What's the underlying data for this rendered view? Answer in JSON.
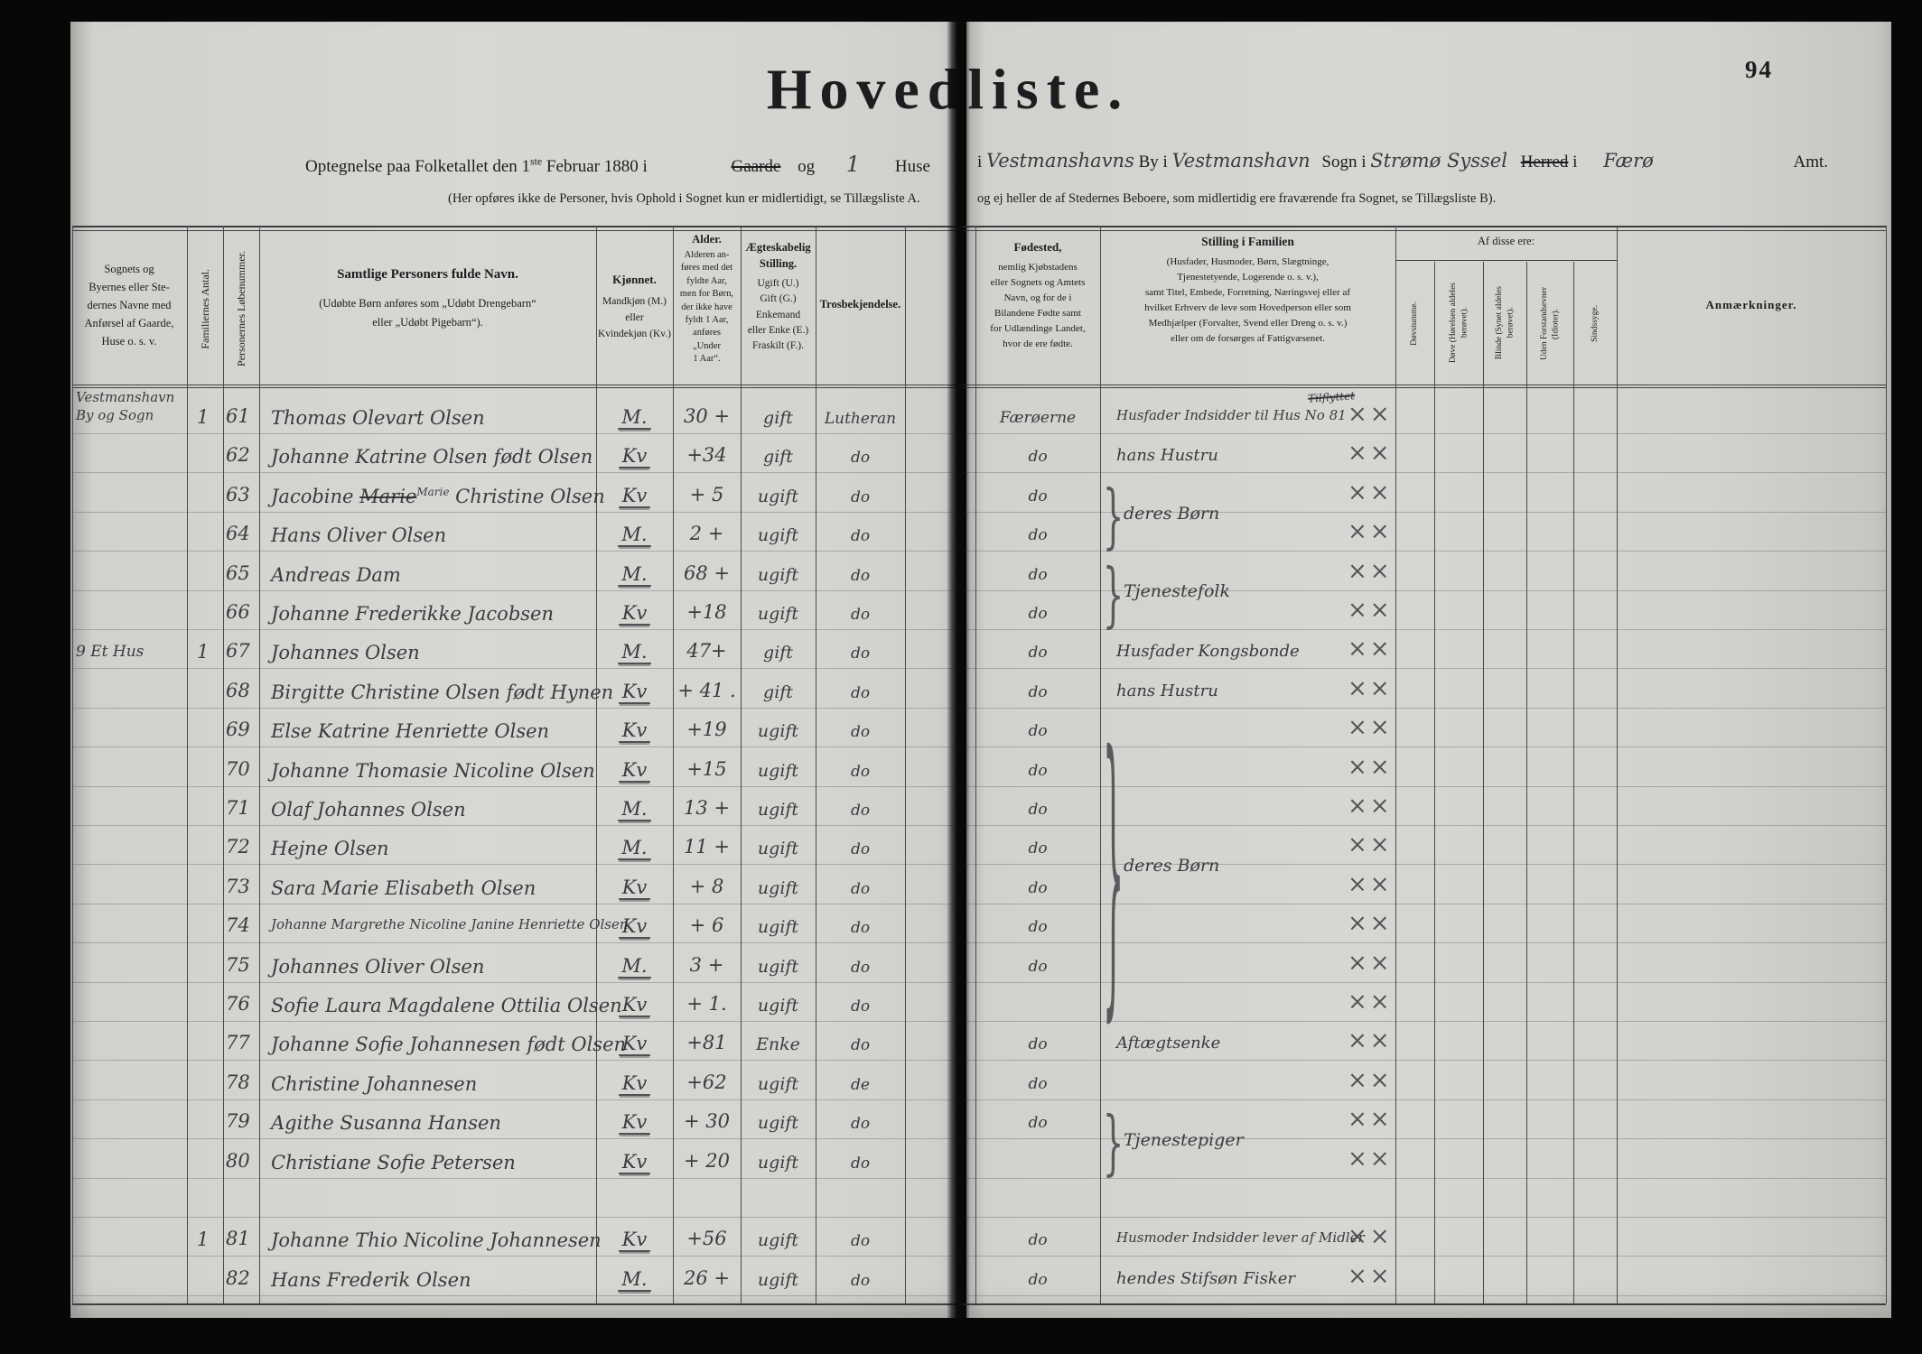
{
  "page_number": "94",
  "title": "Hovedliste.",
  "header": {
    "left_line1": {
      "pre": "Optegnelse paa Folketallet den 1",
      "sup": "ste",
      "post": " Februar 1880 i",
      "struck_gaarde": "Gaarde",
      "og": "og",
      "hw_count": "1",
      "huse": "Huse"
    },
    "right_line1": {
      "i1": "i",
      "hw_by": "Vestmanshavns",
      "by": "By i",
      "hw_sogn": "Vestmanshavn",
      "sogn": "Sogn i",
      "hw_herred": "Strømø Syssel",
      "herred": "Herred",
      "i2": "i",
      "hw_amt": "Færø",
      "amt": "Amt."
    },
    "left_line2": "(Her opføres ikke de Personer, hvis Ophold i Sognet kun er midlertidigt, se Tillægsliste A.",
    "right_line2": "og ej heller de af Stedernes Beboere, som midlertidig ere fraværende fra Sognet, se Tillægsliste B)."
  },
  "columns": {
    "place": "Sognets og\nByernes eller Ste-\ndernes Navne med\nAnførsel af Gaarde,\nHuse o. s. v.",
    "fam_antal": "Familiernes Antal.",
    "pers_nr": "Personernes Løbenummer.",
    "name_main": "Samtlige Personers fulde Navn.",
    "name_sub": "(Udøbte Børn anføres som „Udøbt Drengebarn“\neller „Udøbt Pigebarn“).",
    "sex_main": "Kjønnet.",
    "sex_sub": "Mandkjøn (M.)\neller\nKvindekjøn (Kv.)",
    "age_main": "Alder.",
    "age_sub": "Alderen an-\nføres med det\nfyldte Aar,\nmen for Børn,\nder ikke have\nfyldt 1 Aar,\nanføres\n„Under\n1 Aar“.",
    "marital_main": "Ægteskabelig\nStilling.",
    "marital_sub": "Ugift (U.)\nGift (G.)\nEnkemand\neller Enke (E.)\nFraskilt (F.).",
    "religion": "Trosbekjendelse.",
    "birth_main": "Fødested,",
    "birth_sub": "nemlig Kjøbstadens\neller Sognets og Amtets\nNavn, og for de i\nBilandene Fødte samt\nfor Udlændinge Landet,\nhvor de ere fødte.",
    "position_main": "Stilling i Familien",
    "position_sub": "(Husfader, Husmoder, Børn, Slægtninge,\nTjenestetyende, Logerende o. s. v.),\nsamt Titel, Embede, Forretning, Næringsvej eller af\nhvilket Erhverv de leve som Hovedperson eller som\nMedhjælper (Forvalter, Svend eller Dreng o. s. v.)\neller om de forsørges af Fattigvæsenet.",
    "af_disse_title": "Af disse ere:",
    "af_disse_cols": [
      "Døvstumme.",
      "Døve (Hørelsen aldeles\nberøvet).",
      "Blinde (Synet aldeles\nberøvet).",
      "Uden Forstandsevner\n(Idioter).",
      "Sindssyge."
    ],
    "remarks": "Anmærkninger."
  },
  "place_note": "Vestmanshavn\nBy og Sogn",
  "rows": [
    {
      "nr": "61",
      "antal": "1",
      "name": "Thomas Olevart Olsen",
      "sex": "M.",
      "age": "30 +",
      "marital": "gift",
      "religion": "Lutheran",
      "birth": "Færøerne",
      "stilling": "Husfader Indsidder til Hus No 81",
      "stilling_note": "Tilflyttet",
      "marks": "××"
    },
    {
      "nr": "62",
      "name": "Johanne Katrine Olsen født Olsen",
      "sex": "Kv",
      "age": "+34",
      "marital": "gift",
      "religion": "do",
      "birth": "do",
      "stilling": "hans Hustru",
      "marks": "××"
    },
    {
      "nr": "63",
      "name_parts": {
        "pre": "Jacobine ",
        "struck": "Marie",
        "sup": "Marie",
        "post": " Christine Olsen"
      },
      "sex": "Kv",
      "age": "+ 5",
      "marital": "ugift",
      "religion": "do",
      "birth": "do",
      "marks": "××"
    },
    {
      "nr": "64",
      "name": "Hans Oliver Olsen",
      "sex": "M.",
      "age": "2 +",
      "marital": "ugift",
      "religion": "do",
      "birth": "do",
      "marks": "××"
    },
    {
      "nr": "65",
      "name": "Andreas Dam",
      "sex": "M.",
      "age": "68 +",
      "marital": "ugift",
      "religion": "do",
      "birth": "do",
      "marks": "××"
    },
    {
      "nr": "66",
      "name": "Johanne Frederikke Jacobsen",
      "sex": "Kv",
      "age": "+18",
      "marital": "ugift",
      "religion": "do",
      "birth": "do",
      "marks": "××"
    },
    {
      "nr": "67",
      "house": "9 Et Hus",
      "antal": "1",
      "name": "Johannes Olsen",
      "sex": "M.",
      "age": "47+",
      "marital": "gift",
      "religion": "do",
      "birth": "do",
      "stilling": "Husfader Kongsbonde",
      "marks": "××"
    },
    {
      "nr": "68",
      "name": "Birgitte Christine Olsen født Hynen",
      "sex": "Kv",
      "age": "+ 41 .",
      "marital": "gift",
      "religion": "do",
      "birth": "do",
      "stilling": "hans Hustru",
      "marks": "××"
    },
    {
      "nr": "69",
      "name": "Else Katrine Henriette Olsen",
      "sex": "Kv",
      "age": "+19",
      "marital": "ugift",
      "religion": "do",
      "birth": "do",
      "marks": "××"
    },
    {
      "nr": "70",
      "name": "Johanne Thomasie Nicoline Olsen",
      "sex": "Kv",
      "age": "+15",
      "marital": "ugift",
      "religion": "do",
      "birth": "do",
      "marks": "××"
    },
    {
      "nr": "71",
      "name": "Olaf Johannes Olsen",
      "sex": "M.",
      "age": "13 +",
      "marital": "ugift",
      "religion": "do",
      "birth": "do",
      "marks": "××"
    },
    {
      "nr": "72",
      "name": "Hejne Olsen",
      "sex": "M.",
      "age": "11 +",
      "marital": "ugift",
      "religion": "do",
      "birth": "do",
      "marks": "××"
    },
    {
      "nr": "73",
      "name": "Sara Marie Elisabeth Olsen",
      "sex": "Kv",
      "age": "+ 8",
      "marital": "ugift",
      "religion": "do",
      "birth": "do",
      "marks": "××"
    },
    {
      "nr": "74",
      "name": "Johanne Margrethe Nicoline Janine Henriette Olsen",
      "small_name": true,
      "sex": "Kv",
      "age": "+ 6",
      "marital": "ugift",
      "religion": "do",
      "birth": "do",
      "marks": "××"
    },
    {
      "nr": "75",
      "name": "Johannes Oliver Olsen",
      "sex": "M.",
      "age": "3 +",
      "marital": "ugift",
      "religion": "do",
      "birth": "do",
      "marks": "××"
    },
    {
      "nr": "76",
      "name": "Sofie Laura Magdalene Ottilia Olsen",
      "sex": "Kv",
      "age": "+ 1.",
      "marital": "ugift",
      "religion": "do",
      "birth": "",
      "marks": "××"
    },
    {
      "nr": "77",
      "name": "Johanne Sofie Johannesen født Olsen",
      "sex": "Kv",
      "age": "+81",
      "marital": "Enke",
      "religion": "do",
      "birth": "do",
      "stilling": "Aftægtsenke",
      "marks": "××"
    },
    {
      "nr": "78",
      "name": "Christine Johannesen",
      "sex": "Kv",
      "age": "+62",
      "marital": "ugift",
      "religion": "de",
      "birth": "do",
      "marks": "××"
    },
    {
      "nr": "79",
      "name": "Agithe Susanna Hansen",
      "sex": "Kv",
      "age": "+ 30",
      "marital": "ugift",
      "religion": "do",
      "birth": "do",
      "marks": "××"
    },
    {
      "nr": "80",
      "name": "Christiane Sofie Petersen",
      "sex": "Kv",
      "age": "+ 20",
      "marital": "ugift",
      "religion": "do",
      "birth": "",
      "marks": "××"
    },
    {
      "nr": "81",
      "antal": "1",
      "name": "Johanne Thio Nicoline Johannesen",
      "sex": "Kv",
      "age": "+56",
      "marital": "ugift",
      "religion": "do",
      "birth": "do",
      "stilling": "Husmoder Indsidder lever af Midler",
      "marks": "××"
    },
    {
      "nr": "82",
      "name": "Hans Frederik Olsen",
      "sex": "M.",
      "age": "26 +",
      "marital": "ugift",
      "religion": "do",
      "birth": "do",
      "stilling": "hendes Stifsøn Fisker",
      "marks": "××"
    }
  ],
  "braces": [
    {
      "from_nr": "63",
      "to_nr": "64",
      "label": "deres Børn"
    },
    {
      "from_nr": "65",
      "to_nr": "66",
      "label": "Tjenestefolk"
    },
    {
      "from_nr": "69",
      "to_nr": "76",
      "label": "deres Børn"
    },
    {
      "from_nr": "79",
      "to_nr": "80",
      "label": "Tjenestepiger"
    }
  ]
}
